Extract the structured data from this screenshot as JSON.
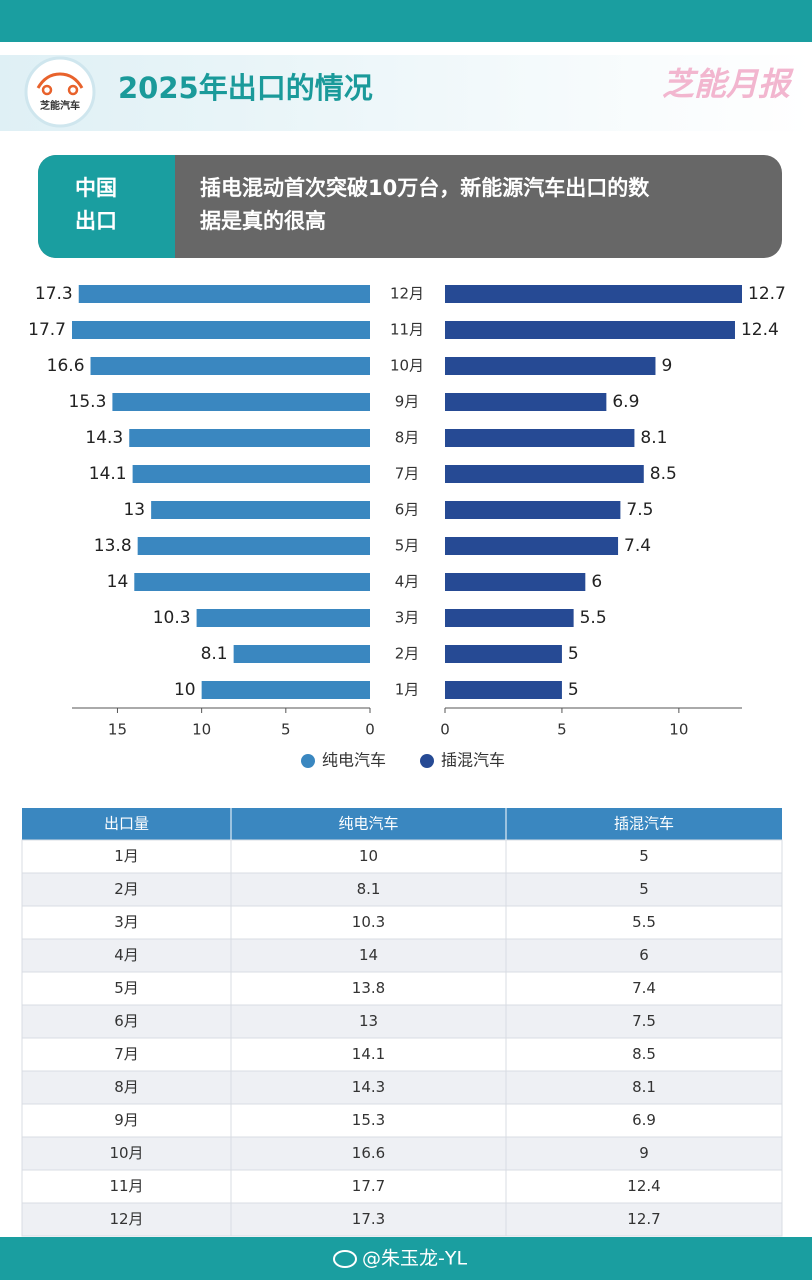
{
  "header": {
    "logo_text": "芝能汽车",
    "title": "2025年出口的情况",
    "brand": "芝能月报"
  },
  "banner": {
    "tag": [
      "中国",
      "出口"
    ],
    "text": [
      "插电混动首次突破10万台，新能源汽车出口的数",
      "据是真的很高"
    ]
  },
  "chart_data": {
    "type": "butterfly",
    "categories": [
      "12月",
      "11月",
      "10月",
      "9月",
      "8月",
      "7月",
      "6月",
      "5月",
      "4月",
      "3月",
      "2月",
      "1月"
    ],
    "series": [
      {
        "name": "纯电汽车",
        "color": "#3a87c0",
        "values": [
          17.3,
          17.7,
          16.6,
          15.3,
          14.3,
          14.1,
          13,
          13.8,
          14,
          10.3,
          8.1,
          10
        ],
        "xlim": [
          0,
          17.7
        ],
        "xticks": [
          0,
          5,
          10,
          15
        ]
      },
      {
        "name": "插混汽车",
        "color": "#264a94",
        "values": [
          12.7,
          12.4,
          9,
          6.9,
          8.1,
          8.5,
          7.5,
          7.4,
          6,
          5.5,
          5,
          5
        ],
        "xlim": [
          0,
          12.7
        ],
        "xticks": [
          0,
          5,
          10
        ]
      }
    ]
  },
  "table": {
    "header": [
      "出口量",
      "纯电汽车",
      "插混汽车"
    ],
    "rows": [
      [
        "1月",
        10,
        5
      ],
      [
        "2月",
        8.1,
        5
      ],
      [
        "3月",
        10.3,
        5.5
      ],
      [
        "4月",
        14,
        6
      ],
      [
        "5月",
        13.8,
        7.4
      ],
      [
        "6月",
        13,
        7.5
      ],
      [
        "7月",
        14.1,
        8.5
      ],
      [
        "8月",
        14.3,
        8.1
      ],
      [
        "9月",
        15.3,
        6.9
      ],
      [
        "10月",
        16.6,
        9
      ],
      [
        "11月",
        17.7,
        12.4
      ],
      [
        "12月",
        17.3,
        12.7
      ]
    ]
  },
  "footer": {
    "handle": "@朱玉龙-YL"
  }
}
